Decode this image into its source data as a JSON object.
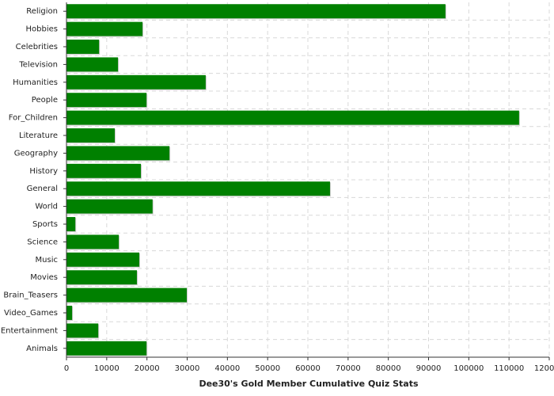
{
  "chart_data": {
    "type": "barh",
    "xlabel": "Dee30's Gold Member Cumulative Quiz Stats",
    "categories": [
      "Religion",
      "Hobbies",
      "Celebrities",
      "Television",
      "Humanities",
      "People",
      "For_Children",
      "Literature",
      "Geography",
      "History",
      "General",
      "World",
      "Sports",
      "Science",
      "Music",
      "Movies",
      "Brain_Teasers",
      "Video_Games",
      "Entertainment",
      "Animals"
    ],
    "values": [
      94200,
      18900,
      8100,
      12800,
      34600,
      19900,
      112500,
      12000,
      25600,
      18500,
      65500,
      21400,
      2200,
      13000,
      18100,
      17500,
      29900,
      1400,
      7900,
      19900
    ],
    "color": "#008000",
    "xlim": [
      0,
      120000
    ],
    "xticks": [
      0,
      10000,
      20000,
      30000,
      40000,
      50000,
      60000,
      70000,
      80000,
      90000,
      100000,
      110000,
      120000
    ],
    "grid": true
  }
}
